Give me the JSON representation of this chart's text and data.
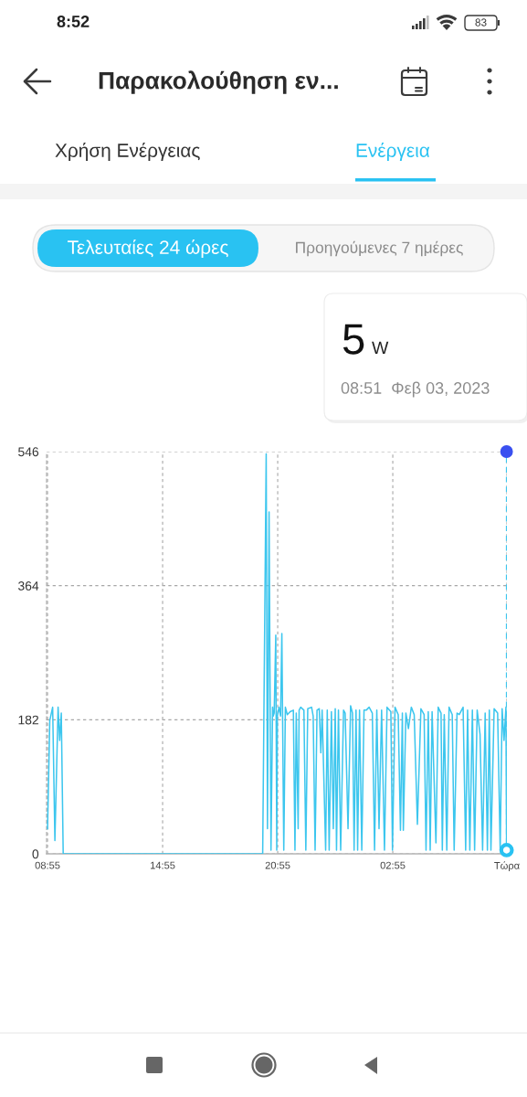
{
  "chart_data": {
    "type": "line",
    "title": "Παρακολούθηση εν...",
    "annotations": [
      "8:52",
      "83",
      "Χρήση Ενέργειας",
      "Ενέργεια",
      "Τελευταίες 24 ώρες",
      "Προηγούμενες 7 ημέρες",
      "5",
      "W",
      "08:51  Φεβ 03, 2023"
    ],
    "series": [
      {
        "color": "#3cc6ee",
        "x": [
          "2023-02-02T08:55",
          "2023-02-02T09:02",
          "2023-02-02T09:11",
          "2023-02-02T09:18",
          "2023-02-02T09:28",
          "2023-02-02T09:33",
          "2023-02-02T09:38",
          "2023-02-02T09:44",
          "2023-02-02T20:08",
          "2023-02-02T20:19",
          "2023-02-02T20:23",
          "2023-02-02T20:28",
          "2023-02-02T20:34",
          "2023-02-02T20:39",
          "2023-02-02T20:41",
          "2023-02-02T20:44",
          "2023-02-02T20:49",
          "2023-02-02T20:52",
          "2023-02-02T20:54",
          "2023-02-02T20:59",
          "2023-02-02T21:04",
          "2023-02-02T21:08",
          "2023-02-02T21:14",
          "2023-02-02T21:19",
          "2023-02-02T21:25",
          "2023-02-02T21:34",
          "2023-02-02T21:44",
          "2023-02-02T21:49",
          "2023-02-02T21:53",
          "2023-02-02T21:59",
          "2023-02-02T22:02",
          "2023-02-02T22:07",
          "2023-02-02T22:17",
          "2023-02-02T22:23",
          "2023-02-02T22:29",
          "2023-02-02T22:41",
          "2023-02-02T22:46",
          "2023-02-02T22:52",
          "2023-02-02T22:58",
          "2023-02-02T23:05",
          "2023-02-02T23:10",
          "2023-02-02T23:14",
          "2023-02-02T23:25",
          "2023-02-02T23:30",
          "2023-02-02T23:36",
          "2023-02-02T23:43",
          "2023-02-02T23:49",
          "2023-02-02T23:55",
          "2023-02-02T23:59",
          "2023-02-03T00:05",
          "2023-02-03T00:12",
          "2023-02-03T00:21",
          "2023-02-03T00:26",
          "2023-02-03T00:35",
          "2023-02-03T00:43",
          "2023-02-03T00:49",
          "2023-02-03T00:54",
          "2023-02-03T01:00",
          "2023-02-03T01:05",
          "2023-02-03T01:11",
          "2023-02-03T01:18",
          "2023-02-03T01:25",
          "2023-02-03T01:32",
          "2023-02-03T01:41",
          "2023-02-03T01:51",
          "2023-02-03T01:58",
          "2023-02-03T02:05",
          "2023-02-03T02:12",
          "2023-02-03T02:20",
          "2023-02-03T02:29",
          "2023-02-03T02:37",
          "2023-02-03T02:49",
          "2023-02-03T02:54",
          "2023-02-03T03:02",
          "2023-02-03T03:12",
          "2023-02-03T03:19",
          "2023-02-03T03:25",
          "2023-02-03T03:28",
          "2023-02-03T03:36",
          "2023-02-03T03:44",
          "2023-02-03T03:53",
          "2023-02-03T04:02",
          "2023-02-03T04:12",
          "2023-02-03T04:23",
          "2023-02-03T04:33",
          "2023-02-03T04:39",
          "2023-02-03T04:46",
          "2023-02-03T04:52",
          "2023-02-03T04:58",
          "2023-02-03T05:10",
          "2023-02-03T05:17",
          "2023-02-03T05:26",
          "2023-02-03T05:30",
          "2023-02-03T05:36",
          "2023-02-03T05:44",
          "2023-02-03T05:51",
          "2023-02-03T06:01",
          "2023-02-03T06:07",
          "2023-02-03T06:16",
          "2023-02-03T06:23",
          "2023-02-03T06:35",
          "2023-02-03T06:43",
          "2023-02-03T06:49",
          "2023-02-03T06:56",
          "2023-02-03T07:04",
          "2023-02-03T07:11",
          "2023-02-03T07:19",
          "2023-02-03T07:28",
          "2023-02-03T07:36",
          "2023-02-03T07:44",
          "2023-02-03T07:51",
          "2023-02-03T07:57",
          "2023-02-03T08:02",
          "2023-02-03T08:12",
          "2023-02-03T08:23",
          "2023-02-03T08:31",
          "2023-02-03T08:37",
          "2023-02-03T08:43",
          "2023-02-03T08:49",
          "2023-02-03T08:51"
        ],
        "values": [
          34,
          181,
          199,
          18,
          199,
          154,
          191,
          0,
          0,
          543,
          34,
          464,
          5,
          199,
          187,
          191,
          297,
          5,
          187,
          199,
          187,
          299,
          5,
          199,
          189,
          193,
          195,
          5,
          191,
          34,
          195,
          199,
          195,
          5,
          197,
          199,
          187,
          5,
          195,
          197,
          137,
          195,
          5,
          195,
          5,
          193,
          34,
          197,
          5,
          195,
          5,
          195,
          191,
          34,
          201,
          191,
          5,
          195,
          5,
          195,
          5,
          195,
          195,
          199,
          191,
          5,
          195,
          34,
          195,
          5,
          199,
          193,
          5,
          199,
          189,
          32,
          191,
          32,
          191,
          170,
          199,
          189,
          40,
          197,
          189,
          5,
          193,
          5,
          193,
          15,
          199,
          191,
          5,
          189,
          5,
          199,
          189,
          5,
          191,
          189,
          199,
          5,
          195,
          5,
          195,
          5,
          195,
          162,
          5,
          191,
          5,
          195,
          5,
          197,
          191,
          5,
          197,
          154,
          199,
          5
        ]
      },
      {
        "type": "scatter",
        "color": "#29c2f2",
        "x": [
          "2023-02-03T08:51"
        ],
        "values": [
          5
        ]
      }
    ],
    "xlim": [
      "2023-02-02T08:52",
      "2023-02-03T08:52"
    ],
    "xticks": [
      {
        "value": "2023-02-02T08:55",
        "label": "08:55"
      },
      {
        "value": "2023-02-02T14:55",
        "label": "14:55"
      },
      {
        "value": "2023-02-02T20:55",
        "label": "20:55"
      },
      {
        "value": "2023-02-03T02:55",
        "label": "02:55"
      },
      {
        "value": "2023-02-03T08:52",
        "label": "Τώρα"
      }
    ],
    "ylim": [
      0,
      546
    ],
    "yticks": [
      0,
      182,
      364,
      546
    ],
    "grid": true,
    "ref_lines": [
      {
        "axis": "x",
        "value": "2023-02-03T08:51",
        "color": "#3cc6ee",
        "line_style": "dashed"
      }
    ]
  }
}
